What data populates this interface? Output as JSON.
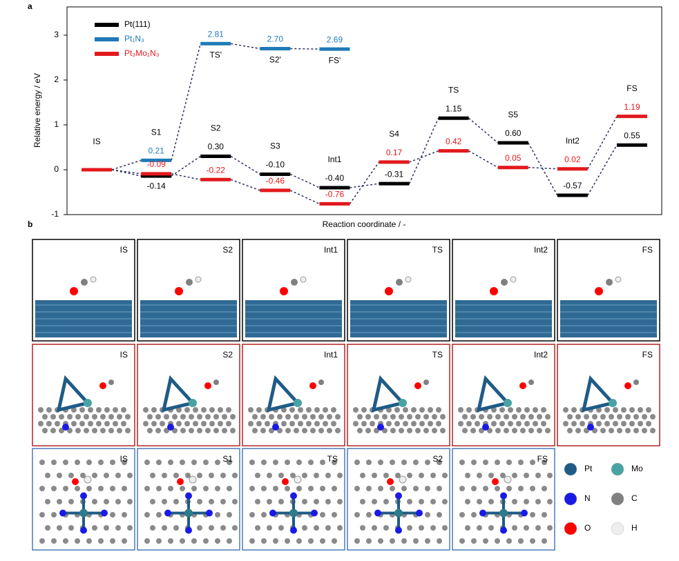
{
  "chart_data": {
    "type": "energy-levels",
    "panel_label": "a",
    "ylabel": "Relative energy / eV",
    "xlabel": "Reaction coordinate / -",
    "categories": [
      "IS",
      "S1",
      "S2",
      "S3",
      "Int1",
      "S4",
      "TS",
      "S5",
      "Int2",
      "FS"
    ],
    "ylim": [
      -1,
      3.63
    ],
    "yticks": [
      -1,
      0,
      1,
      2,
      3
    ],
    "legend": "upper left",
    "series": [
      {
        "name": "Pt(111)",
        "color": "#000000",
        "values": [
          0,
          -0.14,
          0.3,
          -0.1,
          -0.4,
          -0.31,
          1.15,
          0.6,
          -0.57,
          0.55
        ],
        "value_labels": [
          null,
          "-0.14",
          "0.30",
          "-0.10",
          "-0.40",
          "-0.31",
          "1.15",
          "0.60",
          "-0.57",
          "0.55"
        ]
      },
      {
        "name": "Pt₁N₃",
        "color": "#1f7ab8",
        "values": [
          0,
          0.21,
          2.81,
          2.7,
          2.69,
          null,
          null,
          null,
          null,
          null
        ],
        "value_labels": [
          null,
          "0.21",
          "2.81",
          "2.70",
          "2.69",
          null,
          null,
          null,
          null,
          null
        ],
        "state_labels": [
          null,
          null,
          "TS'",
          "S2'",
          "FS'",
          null,
          null,
          null,
          null,
          null
        ]
      },
      {
        "name": "Pt₃Mo₁N₃",
        "color": "#e3191c",
        "values": [
          0,
          -0.09,
          -0.22,
          -0.46,
          -0.76,
          0.17,
          0.42,
          0.05,
          0.02,
          1.19
        ],
        "value_labels": [
          null,
          "-0.09",
          "-0.22",
          "-0.46",
          "-0.76",
          "0.17",
          "0.42",
          "0.05",
          "0.02",
          "1.19"
        ]
      }
    ]
  },
  "structures": {
    "panel_label": "b",
    "rows": [
      {
        "color": "#000000",
        "labels": [
          "IS",
          "S2",
          "Int1",
          "TS",
          "Int2",
          "FS"
        ]
      },
      {
        "color": "#b22222",
        "labels": [
          "IS",
          "S2",
          "Int1",
          "TS",
          "Int2",
          "FS"
        ]
      },
      {
        "color": "#4a7ab8",
        "labels": [
          "IS",
          "S1",
          "TS",
          "S2",
          "FS"
        ]
      }
    ],
    "legend": [
      {
        "name": "Pt",
        "color": "#1f5b86"
      },
      {
        "name": "Mo",
        "color": "#4aa3a3"
      },
      {
        "name": "N",
        "color": "#1a1ae6"
      },
      {
        "name": "C",
        "color": "#808080"
      },
      {
        "name": "O",
        "color": "#ff0000"
      },
      {
        "name": "H",
        "color": "#eeeeee"
      }
    ]
  }
}
